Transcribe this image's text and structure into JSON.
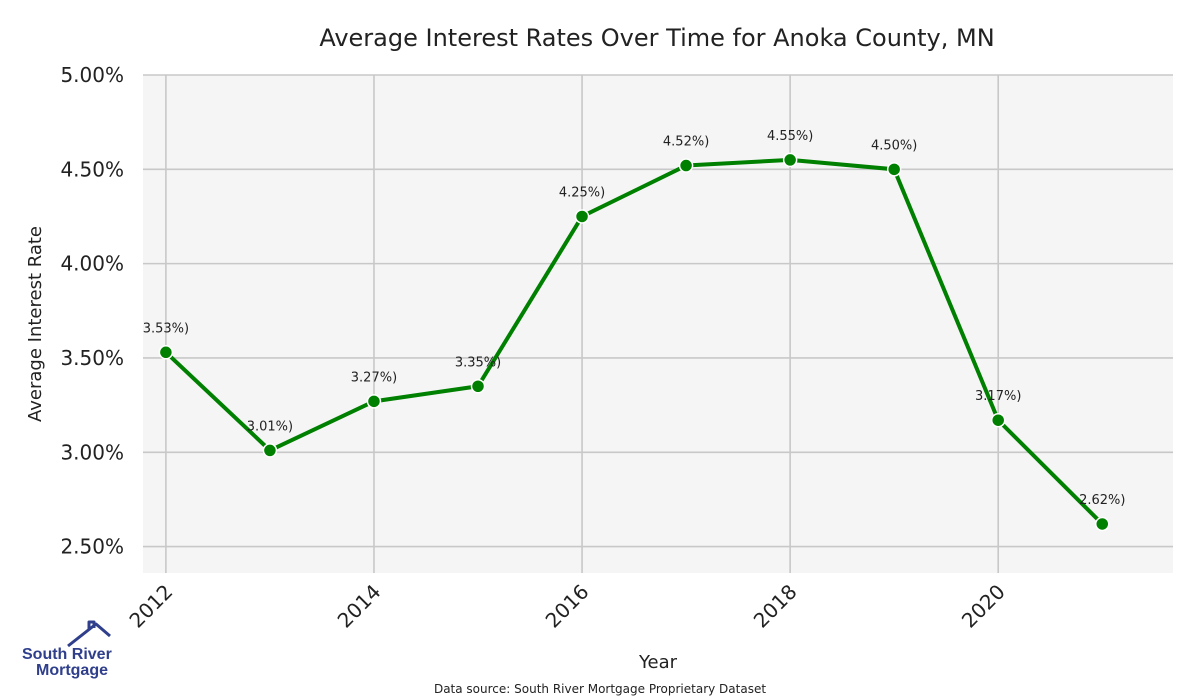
{
  "chart_data": {
    "type": "line",
    "title": "Average Interest Rates Over Time for Anoka County, MN",
    "xlabel": "Year",
    "ylabel": "Average Interest Rate",
    "x": [
      2012,
      2013,
      2014,
      2015,
      2016,
      2017,
      2018,
      2019,
      2020,
      2021
    ],
    "series": [
      {
        "values": [
          3.53,
          3.01,
          3.27,
          3.35,
          4.25,
          4.52,
          4.55,
          4.5,
          3.17,
          2.62
        ],
        "labels": [
          "3.53%)",
          "3.01%)",
          "3.27%)",
          "3.35%)",
          "4.25%)",
          "4.52%)",
          "4.55%)",
          "4.50%)",
          "3.17%)",
          "2.62%)"
        ],
        "color": "#008000"
      }
    ],
    "xticks": [
      2012,
      2014,
      2016,
      2018,
      2020
    ],
    "xtick_labels": [
      "2012",
      "2014",
      "2016",
      "2018",
      "2020"
    ],
    "yticks": [
      2.5,
      3.0,
      3.5,
      4.0,
      4.5,
      5.0
    ],
    "ytick_labels": [
      "2.50%",
      "3.00%",
      "3.50%",
      "4.00%",
      "4.50%",
      "5.00%"
    ],
    "xlim": [
      2011.78,
      2021.68
    ],
    "ylim": [
      2.36,
      5.0
    ],
    "grid": true,
    "plot_background": "#f5f5f5",
    "grid_color": "#c8c8c8",
    "source": "Data source: South River Mortgage Proprietary Dataset"
  },
  "logo": {
    "line1": "South River",
    "line2": "Mortgage",
    "color": "#2f3f8c",
    "icon": "house-roof-icon"
  }
}
